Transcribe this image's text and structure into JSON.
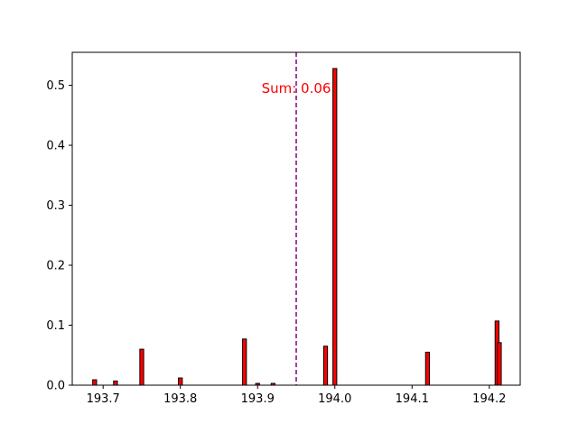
{
  "chart_data": {
    "type": "bar",
    "title": "",
    "xlabel": "",
    "ylabel": "",
    "xlim": [
      193.66,
      194.24
    ],
    "ylim": [
      0,
      0.555
    ],
    "x_ticks": [
      193.7,
      193.8,
      193.9,
      194.0,
      194.1,
      194.2
    ],
    "x_tick_labels": [
      "193.7",
      "193.8",
      "193.9",
      "194.0",
      "194.1",
      "194.2"
    ],
    "y_ticks": [
      0.0,
      0.1,
      0.2,
      0.3,
      0.4,
      0.5
    ],
    "y_tick_labels": [
      "0.0",
      "0.1",
      "0.2",
      "0.3",
      "0.4",
      "0.5"
    ],
    "bar_width": 0.005,
    "bar_color": "#ff0000",
    "bar_edge_color": "#000000",
    "bars": [
      {
        "x": 193.689,
        "y": 0.009
      },
      {
        "x": 193.716,
        "y": 0.007
      },
      {
        "x": 193.75,
        "y": 0.06
      },
      {
        "x": 193.8,
        "y": 0.012
      },
      {
        "x": 193.883,
        "y": 0.077
      },
      {
        "x": 193.9,
        "y": 0.003
      },
      {
        "x": 193.92,
        "y": 0.003
      },
      {
        "x": 193.988,
        "y": 0.065
      },
      {
        "x": 194.0,
        "y": 0.528
      },
      {
        "x": 194.12,
        "y": 0.055
      },
      {
        "x": 194.21,
        "y": 0.107
      },
      {
        "x": 194.213,
        "y": 0.071
      }
    ],
    "vline": {
      "x": 193.95,
      "color": "#800080",
      "style": "dashed"
    },
    "annotation": {
      "text": "Sum: 0.06",
      "x": 193.95,
      "y": 0.495,
      "color": "#ff0000"
    },
    "grid": false,
    "legend": "none"
  }
}
